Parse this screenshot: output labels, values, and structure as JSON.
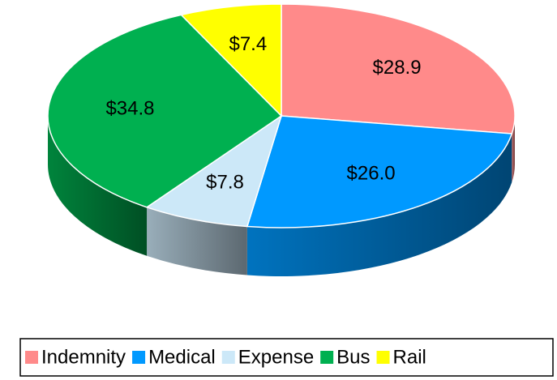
{
  "chart_data": {
    "type": "pie3d",
    "categories": [
      "Indemnity",
      "Medical",
      "Expense",
      "Bus",
      "Rail"
    ],
    "values": [
      28.9,
      26.0,
      7.8,
      34.8,
      7.4
    ],
    "value_labels": [
      "$28.9",
      "$26.0",
      "$7.8",
      "$34.8",
      "$7.4"
    ],
    "colors": [
      "#ff8a8a",
      "#0099ff",
      "#cce8f8",
      "#00b050",
      "#ffff00"
    ],
    "legend": "bottom"
  }
}
